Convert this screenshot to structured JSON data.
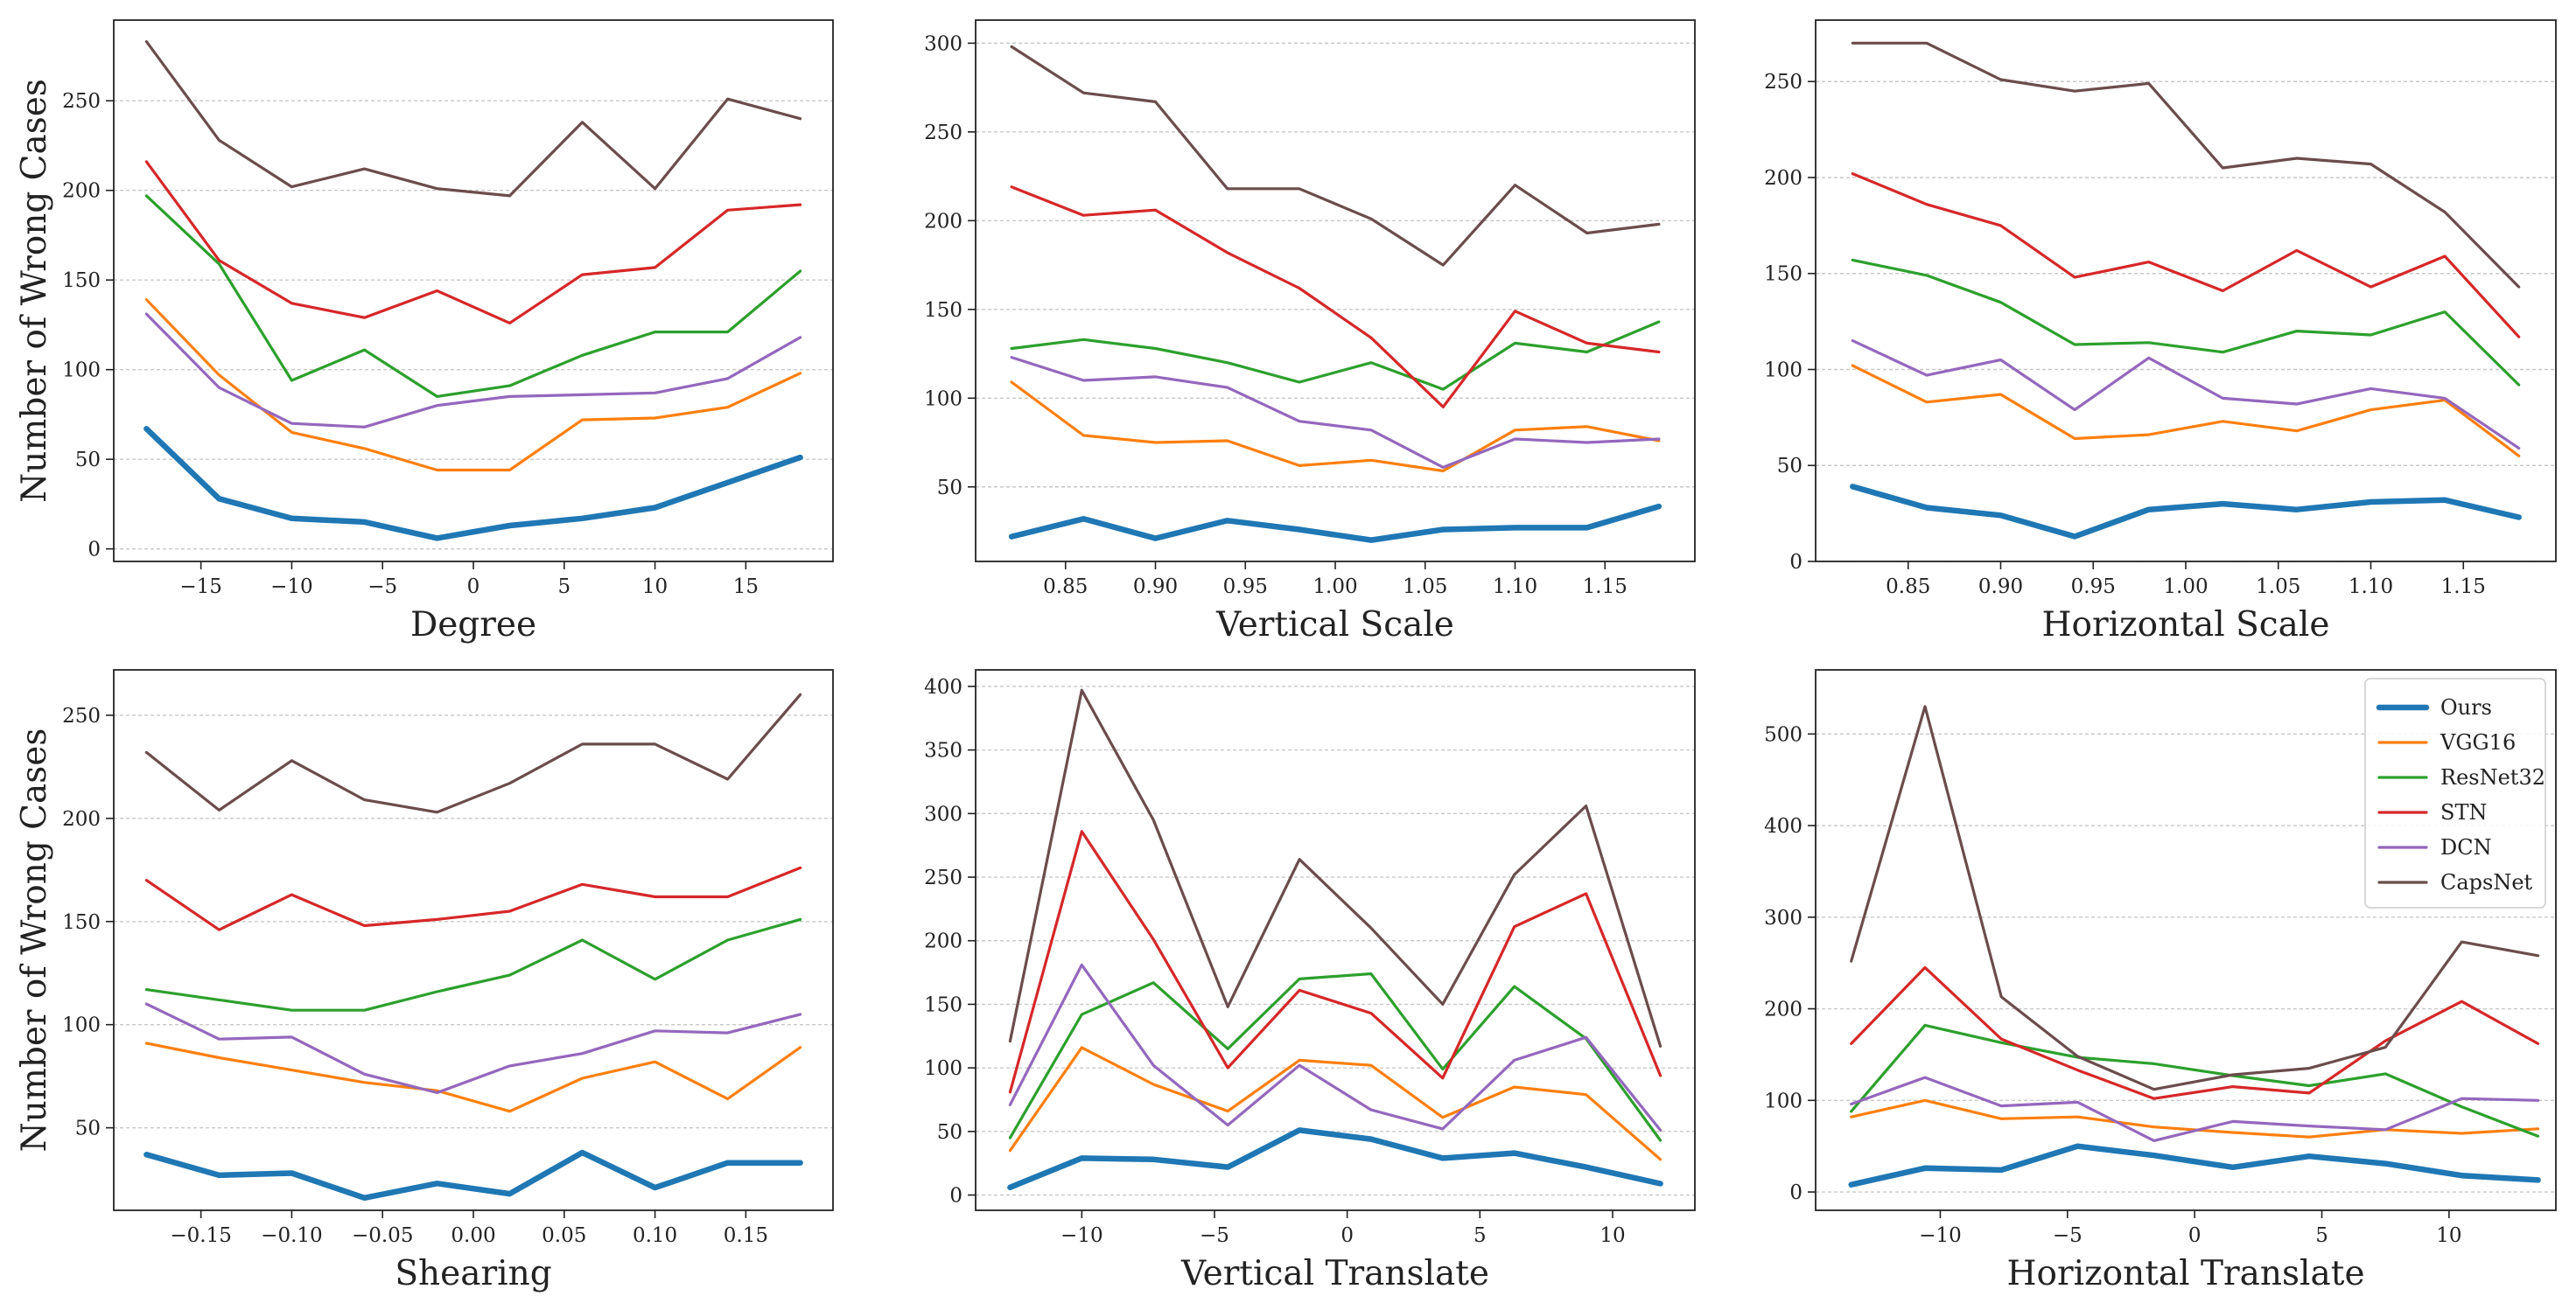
{
  "series_styles": [
    {
      "name": "Ours",
      "color": "#1f77b4",
      "width": 6.5
    },
    {
      "name": "VGG16",
      "color": "#ff7f0e",
      "width": 3.2
    },
    {
      "name": "ResNet32",
      "color": "#2ca02c",
      "width": 3.2
    },
    {
      "name": "STN",
      "color": "#d62728",
      "width": 3.2
    },
    {
      "name": "DCN",
      "color": "#9467bd",
      "width": 3.2
    },
    {
      "name": "CapsNet",
      "color": "#6b4c4c",
      "width": 3.2
    }
  ],
  "chart_data": [
    {
      "type": "line",
      "xlabel": "Degree",
      "ylabel": "Number of Wrong Cases",
      "xlim": [
        -19.8,
        19.8
      ],
      "ylim": [
        -7,
        295
      ],
      "xticks": [
        -15,
        -10,
        -5,
        0,
        5,
        10,
        15
      ],
      "xtick_labels": [
        "−15",
        "−10",
        "−5",
        "0",
        "5",
        "10",
        "15"
      ],
      "yticks": [
        0,
        50,
        100,
        150,
        200,
        250
      ],
      "ytick_labels": [
        "0",
        "50",
        "100",
        "150",
        "200",
        "250"
      ],
      "x": [
        -18,
        -14,
        -10,
        -6,
        -2,
        2,
        6,
        10,
        14,
        18
      ],
      "series": [
        {
          "name": "Ours",
          "values": [
            67,
            28,
            17,
            15,
            6,
            13,
            17,
            23,
            37,
            51
          ]
        },
        {
          "name": "VGG16",
          "values": [
            139,
            97,
            65,
            56,
            44,
            44,
            72,
            73,
            79,
            98
          ]
        },
        {
          "name": "ResNet32",
          "values": [
            197,
            159,
            94,
            111,
            85,
            91,
            108,
            121,
            121,
            155
          ]
        },
        {
          "name": "STN",
          "values": [
            216,
            161,
            137,
            129,
            144,
            126,
            153,
            157,
            189,
            192
          ]
        },
        {
          "name": "DCN",
          "values": [
            131,
            90,
            70,
            68,
            80,
            85,
            86,
            87,
            95,
            118
          ]
        },
        {
          "name": "CapsNet",
          "values": [
            283,
            228,
            202,
            212,
            201,
            197,
            238,
            201,
            251,
            240
          ]
        }
      ]
    },
    {
      "type": "line",
      "xlabel": "Vertical Scale",
      "ylabel": "",
      "xlim": [
        0.8,
        1.2
      ],
      "ylim": [
        8,
        313
      ],
      "xticks": [
        0.85,
        0.9,
        0.95,
        1.0,
        1.05,
        1.1,
        1.15
      ],
      "xtick_labels": [
        "0.85",
        "0.90",
        "0.95",
        "1.00",
        "1.05",
        "1.10",
        "1.15"
      ],
      "yticks": [
        50,
        100,
        150,
        200,
        250,
        300
      ],
      "ytick_labels": [
        "50",
        "100",
        "150",
        "200",
        "250",
        "300"
      ],
      "x": [
        0.82,
        0.86,
        0.9,
        0.94,
        0.98,
        1.02,
        1.06,
        1.1,
        1.14,
        1.18
      ],
      "series": [
        {
          "name": "Ours",
          "values": [
            22,
            32,
            21,
            31,
            26,
            20,
            26,
            27,
            27,
            39
          ]
        },
        {
          "name": "VGG16",
          "values": [
            109,
            79,
            75,
            76,
            62,
            65,
            59,
            82,
            84,
            76
          ]
        },
        {
          "name": "ResNet32",
          "values": [
            128,
            133,
            128,
            120,
            109,
            120,
            105,
            131,
            126,
            143
          ]
        },
        {
          "name": "STN",
          "values": [
            219,
            203,
            206,
            182,
            162,
            134,
            95,
            149,
            131,
            126
          ]
        },
        {
          "name": "DCN",
          "values": [
            123,
            110,
            112,
            106,
            87,
            82,
            61,
            77,
            75,
            77
          ]
        },
        {
          "name": "CapsNet",
          "values": [
            298,
            272,
            267,
            218,
            218,
            201,
            175,
            220,
            193,
            198
          ]
        }
      ]
    },
    {
      "type": "line",
      "xlabel": "Horizontal Scale",
      "ylabel": "",
      "xlim": [
        0.8,
        1.2
      ],
      "ylim": [
        0,
        282
      ],
      "xticks": [
        0.85,
        0.9,
        0.95,
        1.0,
        1.05,
        1.1,
        1.15
      ],
      "xtick_labels": [
        "0.85",
        "0.90",
        "0.95",
        "1.00",
        "1.05",
        "1.10",
        "1.15"
      ],
      "yticks": [
        0,
        50,
        100,
        150,
        200,
        250
      ],
      "ytick_labels": [
        "0",
        "50",
        "100",
        "150",
        "200",
        "250"
      ],
      "x": [
        0.82,
        0.86,
        0.9,
        0.94,
        0.98,
        1.02,
        1.06,
        1.1,
        1.14,
        1.18
      ],
      "series": [
        {
          "name": "Ours",
          "values": [
            39,
            28,
            24,
            13,
            27,
            30,
            27,
            31,
            32,
            23
          ]
        },
        {
          "name": "VGG16",
          "values": [
            102,
            83,
            87,
            64,
            66,
            73,
            68,
            79,
            84,
            55
          ]
        },
        {
          "name": "ResNet32",
          "values": [
            157,
            149,
            135,
            113,
            114,
            109,
            120,
            118,
            130,
            92
          ]
        },
        {
          "name": "STN",
          "values": [
            202,
            186,
            175,
            148,
            156,
            141,
            162,
            143,
            159,
            117
          ]
        },
        {
          "name": "DCN",
          "values": [
            115,
            97,
            105,
            79,
            106,
            85,
            82,
            90,
            85,
            59
          ]
        },
        {
          "name": "CapsNet",
          "values": [
            270,
            270,
            251,
            245,
            249,
            205,
            210,
            207,
            182,
            143
          ]
        }
      ]
    },
    {
      "type": "line",
      "xlabel": "Shearing",
      "ylabel": "Number of Wrong Cases",
      "xlim": [
        -0.198,
        0.198
      ],
      "ylim": [
        10,
        272
      ],
      "xticks": [
        -0.15,
        -0.1,
        -0.05,
        0.0,
        0.05,
        0.1,
        0.15
      ],
      "xtick_labels": [
        "−0.15",
        "−0.10",
        "−0.05",
        "0.00",
        "0.05",
        "0.10",
        "0.15"
      ],
      "yticks": [
        50,
        100,
        150,
        200,
        250
      ],
      "ytick_labels": [
        "50",
        "100",
        "150",
        "200",
        "250"
      ],
      "x": [
        -0.18,
        -0.14,
        -0.1,
        -0.06,
        -0.02,
        0.02,
        0.06,
        0.1,
        0.14,
        0.18
      ],
      "series": [
        {
          "name": "Ours",
          "values": [
            37,
            27,
            28,
            16,
            23,
            18,
            38,
            21,
            33,
            33
          ]
        },
        {
          "name": "VGG16",
          "values": [
            91,
            84,
            78,
            72,
            68,
            58,
            74,
            82,
            64,
            89
          ]
        },
        {
          "name": "ResNet32",
          "values": [
            117,
            112,
            107,
            107,
            116,
            124,
            141,
            122,
            141,
            151
          ]
        },
        {
          "name": "STN",
          "values": [
            170,
            146,
            163,
            148,
            151,
            155,
            168,
            162,
            162,
            176
          ]
        },
        {
          "name": "DCN",
          "values": [
            110,
            93,
            94,
            76,
            67,
            80,
            86,
            97,
            96,
            105
          ]
        },
        {
          "name": "CapsNet",
          "values": [
            232,
            204,
            228,
            209,
            203,
            217,
            236,
            236,
            219,
            260
          ]
        }
      ]
    },
    {
      "type": "line",
      "xlabel": "Vertical Translate",
      "ylabel": "",
      "xlim": [
        -14.0,
        13.1
      ],
      "ylim": [
        -12,
        413
      ],
      "xticks": [
        -10,
        -5,
        0,
        5,
        10
      ],
      "xtick_labels": [
        "−10",
        "−5",
        "0",
        "5",
        "10"
      ],
      "yticks": [
        0,
        50,
        100,
        150,
        200,
        250,
        300,
        350,
        400
      ],
      "ytick_labels": [
        "0",
        "50",
        "100",
        "150",
        "200",
        "250",
        "300",
        "350",
        "400"
      ],
      "x": [
        -12.7,
        -10,
        -7.3,
        -4.5,
        -1.8,
        0.9,
        3.6,
        6.3,
        9.0,
        11.8
      ],
      "series": [
        {
          "name": "Ours",
          "values": [
            6,
            29,
            28,
            22,
            51,
            44,
            29,
            33,
            22,
            9
          ]
        },
        {
          "name": "VGG16",
          "values": [
            35,
            116,
            87,
            66,
            106,
            102,
            61,
            85,
            79,
            28
          ]
        },
        {
          "name": "ResNet32",
          "values": [
            45,
            142,
            167,
            115,
            170,
            174,
            99,
            164,
            123,
            43
          ]
        },
        {
          "name": "STN",
          "values": [
            81,
            286,
            201,
            100,
            161,
            143,
            92,
            211,
            237,
            94
          ]
        },
        {
          "name": "DCN",
          "values": [
            71,
            181,
            102,
            55,
            102,
            67,
            52,
            106,
            124,
            51
          ]
        },
        {
          "name": "CapsNet",
          "values": [
            121,
            397,
            295,
            148,
            264,
            210,
            150,
            252,
            306,
            117
          ]
        }
      ]
    },
    {
      "type": "line",
      "xlabel": "Horizontal Translate",
      "ylabel": "",
      "xlim": [
        -14.9,
        14.2
      ],
      "ylim": [
        -20,
        570
      ],
      "xticks": [
        -10,
        -5,
        0,
        5,
        10
      ],
      "xtick_labels": [
        "−10",
        "−5",
        "0",
        "5",
        "10"
      ],
      "yticks": [
        0,
        100,
        200,
        300,
        400,
        500
      ],
      "ytick_labels": [
        "0",
        "100",
        "200",
        "300",
        "400",
        "500"
      ],
      "x": [
        -13.5,
        -10.6,
        -7.6,
        -4.6,
        -1.6,
        1.5,
        4.5,
        7.5,
        10.5,
        13.5
      ],
      "series": [
        {
          "name": "Ours",
          "values": [
            8,
            26,
            24,
            50,
            40,
            27,
            39,
            31,
            18,
            13
          ]
        },
        {
          "name": "VGG16",
          "values": [
            82,
            100,
            80,
            82,
            71,
            65,
            60,
            68,
            64,
            69
          ]
        },
        {
          "name": "ResNet32",
          "values": [
            88,
            182,
            163,
            147,
            140,
            127,
            116,
            129,
            93,
            61
          ]
        },
        {
          "name": "STN",
          "values": [
            162,
            245,
            167,
            133,
            102,
            115,
            108,
            165,
            208,
            162
          ]
        },
        {
          "name": "DCN",
          "values": [
            96,
            125,
            94,
            98,
            56,
            77,
            72,
            68,
            102,
            100
          ]
        },
        {
          "name": "CapsNet",
          "values": [
            252,
            530,
            213,
            148,
            112,
            128,
            135,
            158,
            273,
            258
          ]
        }
      ]
    }
  ],
  "legend": {
    "placement": "top-right of last panel",
    "entries": [
      "Ours",
      "VGG16",
      "ResNet32",
      "STN",
      "DCN",
      "CapsNet"
    ]
  }
}
